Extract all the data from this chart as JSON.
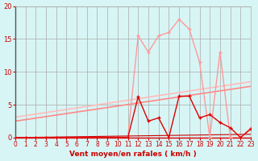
{
  "xlabel": "Vent moyen/en rafales ( km/h )",
  "background_color": "#d8f5f5",
  "grid_color": "#aaaaaa",
  "x_ticks": [
    0,
    1,
    2,
    3,
    4,
    5,
    6,
    7,
    8,
    9,
    10,
    11,
    12,
    13,
    14,
    15,
    16,
    17,
    18,
    19,
    20,
    21,
    22,
    23
  ],
  "ylim": [
    0,
    20
  ],
  "xlim": [
    0,
    23
  ],
  "yticks": [
    0,
    5,
    10,
    15,
    20
  ],
  "line_data_curve": [
    0,
    0,
    0,
    0,
    0,
    0,
    0,
    0,
    0,
    0,
    0,
    0,
    15.5,
    13,
    15.5,
    16,
    18,
    16.5,
    11.5,
    0,
    13,
    0,
    0,
    1.5
  ],
  "line_data_dark": [
    0,
    0,
    0,
    0,
    0,
    0,
    0,
    0,
    0,
    0,
    0,
    0,
    6.2,
    2.5,
    3,
    0,
    6.3,
    6.3,
    3,
    3.5,
    2.3,
    1.5,
    0,
    1.3
  ],
  "line1_y0": 3.1,
  "line1_y1": 8.5,
  "line2_y0": 2.5,
  "line2_y1": 7.8,
  "line3_y0": 0.0,
  "line3_y1": 0.5,
  "color_light": "#ff9999",
  "color_dark": "#dd0000",
  "color_line1": "#ffbbbb",
  "color_line2": "#ff8888",
  "color_line3": "#cc0000",
  "tick_color": "#cc0000",
  "label_color": "#cc0000"
}
